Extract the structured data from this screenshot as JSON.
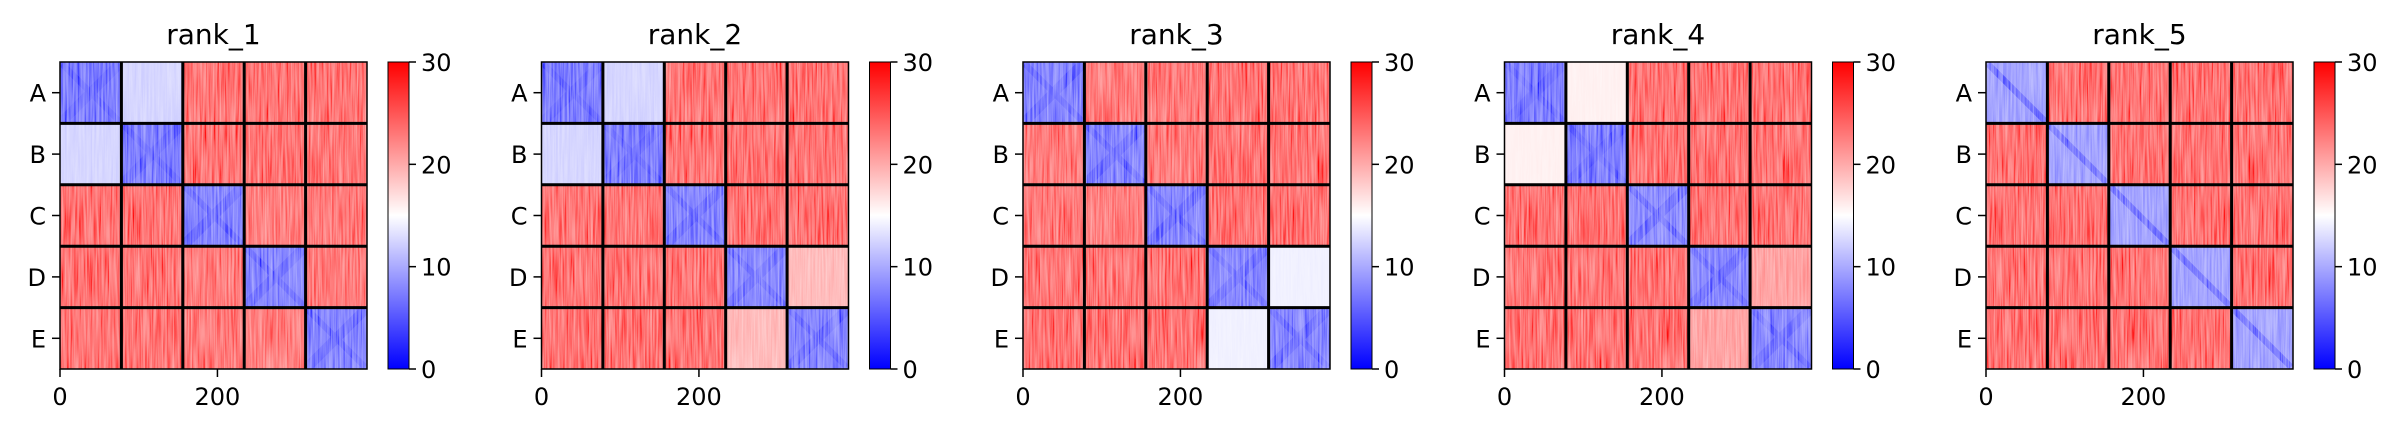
{
  "chart_data": {
    "type": "heatmap",
    "description": "Five PAE-style contact heatmaps, one per model rank, each with blocks for chains A-E and a colorbar.",
    "colormap": "bwr",
    "colormap_colors": [
      "#0000ff",
      "#ffffff",
      "#ff0000"
    ],
    "vmin": 0,
    "vmax": 30,
    "colorbar_ticks": [
      0,
      10,
      20,
      30
    ],
    "xticks": [
      0,
      200
    ],
    "chain_labels": [
      "A",
      "B",
      "C",
      "D",
      "E"
    ],
    "chain_boundaries": [
      0,
      78,
      156,
      234,
      312,
      390
    ],
    "panels": [
      {
        "title": "rank_1",
        "block_values": [
          [
            4,
            12,
            28,
            29,
            28
          ],
          [
            12,
            4,
            29,
            29,
            28
          ],
          [
            29,
            29,
            5,
            26,
            27
          ],
          [
            29,
            29,
            27,
            5,
            27
          ],
          [
            28,
            28,
            27,
            26,
            5
          ]
        ]
      },
      {
        "title": "rank_2",
        "block_values": [
          [
            4,
            12,
            28,
            29,
            29
          ],
          [
            12,
            4,
            29,
            29,
            29
          ],
          [
            28,
            28,
            5,
            29,
            29
          ],
          [
            29,
            29,
            29,
            5,
            20
          ],
          [
            29,
            29,
            29,
            20,
            5
          ]
        ]
      },
      {
        "title": "rank_3",
        "block_values": [
          [
            5,
            27,
            27,
            29,
            29
          ],
          [
            27,
            5,
            27,
            29,
            29
          ],
          [
            27,
            26,
            5,
            29,
            29
          ],
          [
            29,
            29,
            29,
            5,
            14
          ],
          [
            29,
            29,
            29,
            14,
            5
          ]
        ]
      },
      {
        "title": "rank_4",
        "block_values": [
          [
            4,
            16,
            29,
            29,
            29
          ],
          [
            16,
            4,
            29,
            29,
            29
          ],
          [
            29,
            29,
            6,
            29,
            29
          ],
          [
            29,
            29,
            29,
            5,
            22
          ],
          [
            29,
            29,
            29,
            22,
            5
          ]
        ]
      },
      {
        "title": "rank_5",
        "block_values": [
          [
            8,
            29,
            29,
            29,
            29
          ],
          [
            29,
            8,
            29,
            29,
            29
          ],
          [
            29,
            29,
            8,
            29,
            29
          ],
          [
            29,
            29,
            29,
            8,
            29
          ],
          [
            29,
            29,
            29,
            29,
            8
          ]
        ]
      }
    ]
  }
}
